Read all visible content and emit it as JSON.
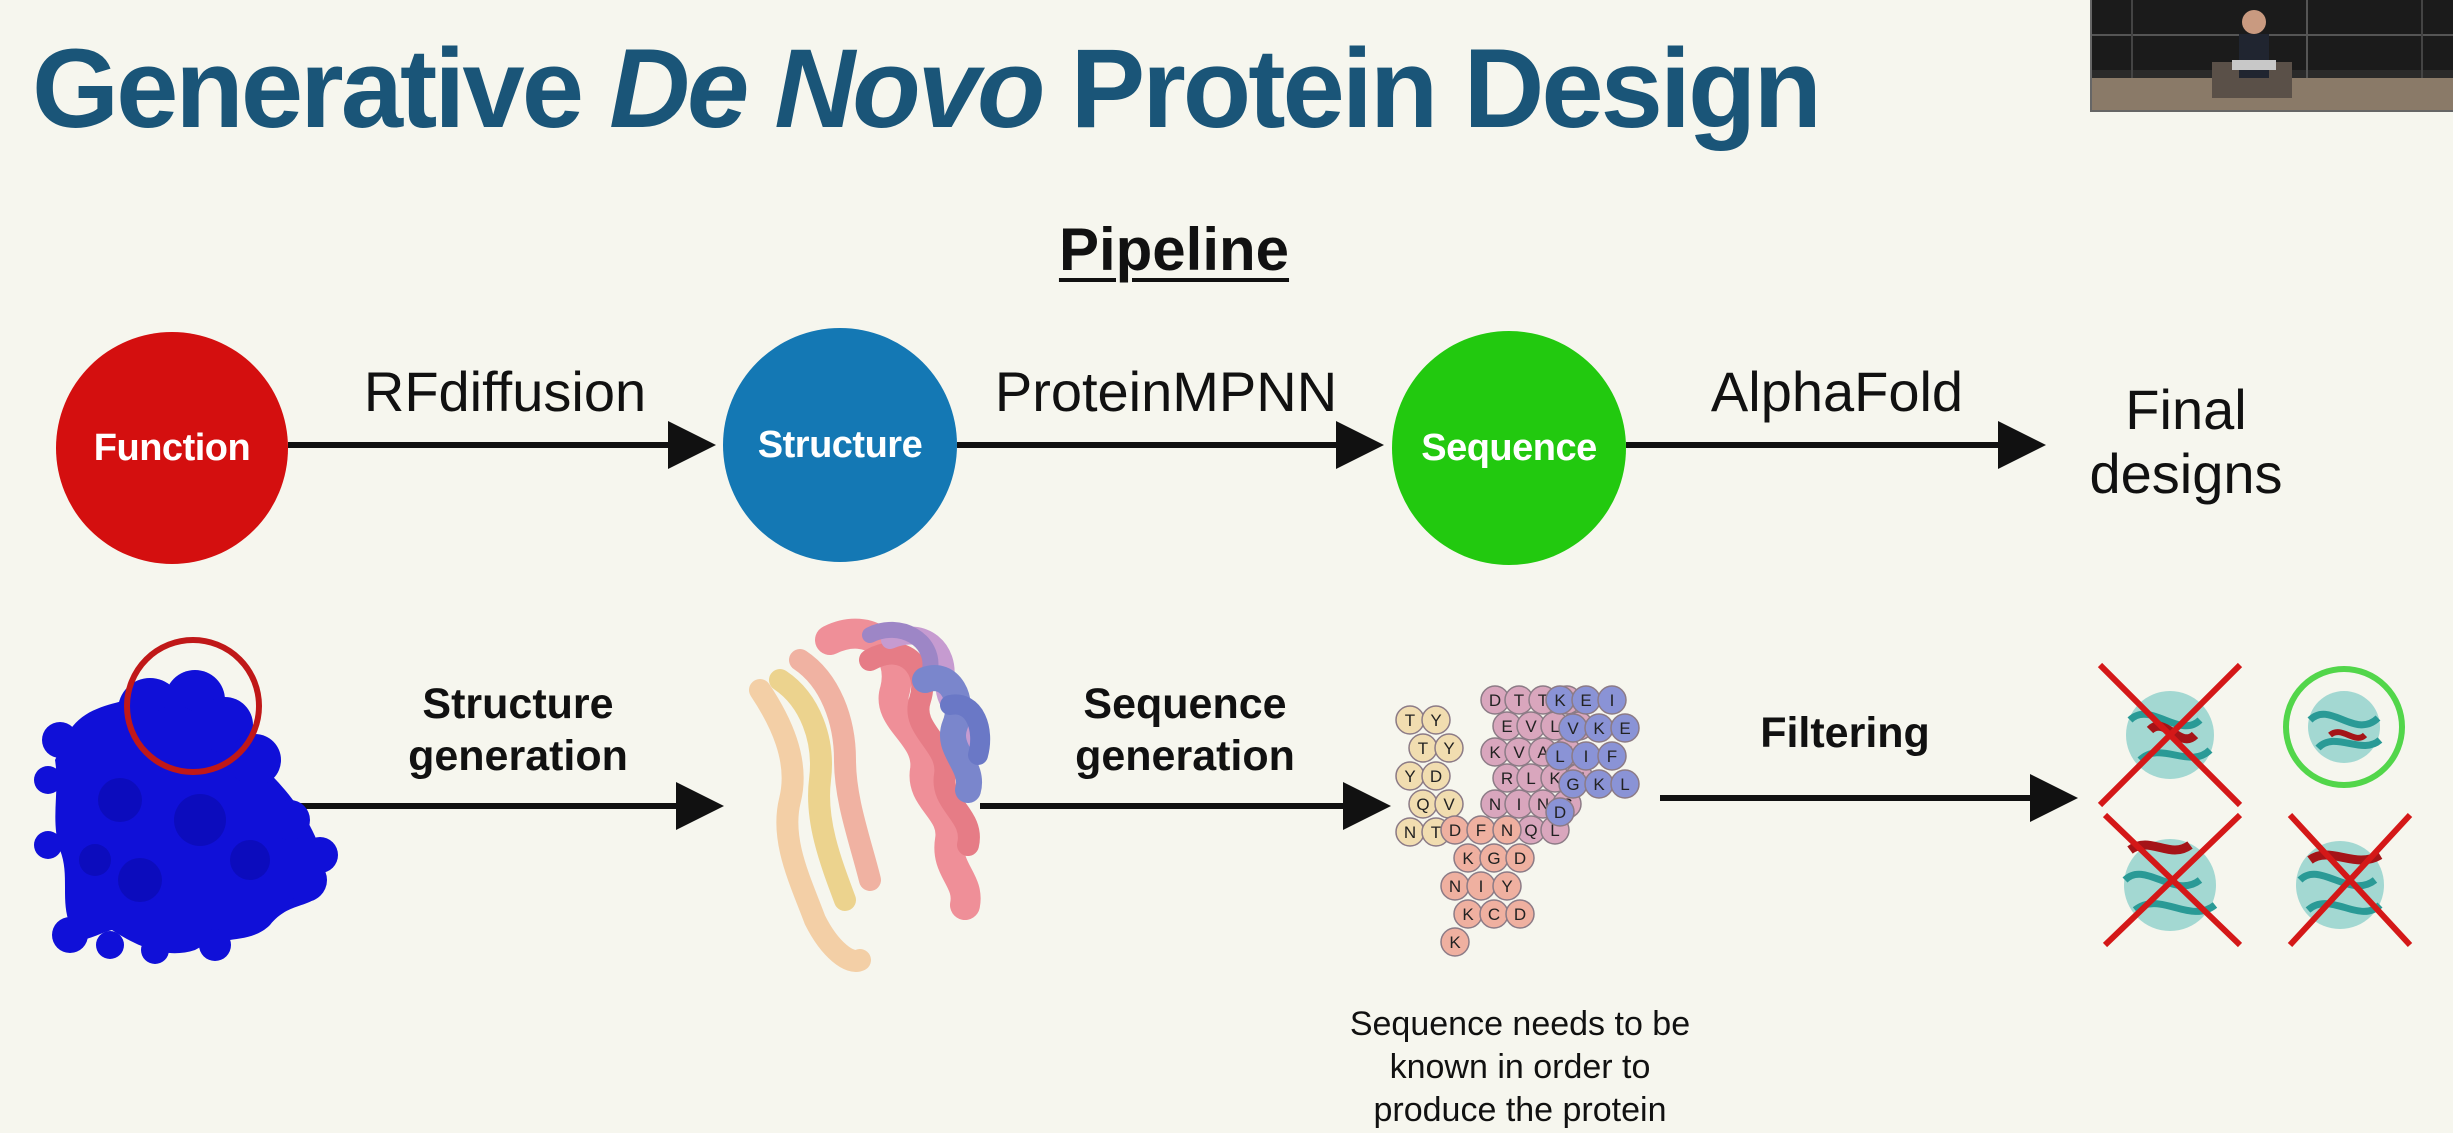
{
  "slide": {
    "title_pre": "Generative ",
    "title_em": "De Novo",
    "title_post": " Protein Design",
    "subtitle": "Pipeline"
  },
  "pipeline": {
    "nodes": [
      {
        "label": "Function",
        "color": "#d40f0f"
      },
      {
        "label": "Structure",
        "color": "#1478b4"
      },
      {
        "label": "Sequence",
        "color": "#22c90f"
      }
    ],
    "tools": [
      "RFdiffusion",
      "ProteinMPNN",
      "AlphaFold"
    ],
    "final_line1": "Final",
    "final_line2": "designs"
  },
  "steps": {
    "structure_gen_line1": "Structure",
    "structure_gen_line2": "generation",
    "sequence_gen_line1": "Sequence",
    "sequence_gen_line2": "generation",
    "filtering": "Filtering"
  },
  "note": {
    "line1": "Sequence needs to be",
    "line2": "known in order to",
    "line3": "produce the protein"
  },
  "residues": {
    "pink": [
      "D",
      "T",
      "T",
      "A",
      "E",
      "V",
      "L",
      "I",
      "K",
      "V",
      "A",
      "E",
      "R",
      "L",
      "K",
      "E",
      "N",
      "I",
      "N",
      "S",
      "T",
      "Q",
      "L"
    ],
    "yellow": [
      "T",
      "Y",
      "T",
      "Y",
      "Y",
      "D",
      "Q",
      "V",
      "N",
      "T"
    ],
    "salmon": [
      "D",
      "F",
      "N",
      "K",
      "G",
      "D",
      "N",
      "I",
      "Y",
      "K",
      "C",
      "D",
      "K"
    ],
    "blue": [
      "K",
      "E",
      "I",
      "V",
      "K",
      "E",
      "L",
      "I",
      "F",
      "G",
      "K",
      "L",
      "D"
    ]
  },
  "colors": {
    "arrow": "#111111",
    "title": "#1a5578",
    "function_blob": "#1010d8",
    "highlight_circle": "#c01818",
    "reject_cross": "#d41818",
    "accept_circle": "#52d64a",
    "design_ribbon": "#3eb4b0"
  }
}
